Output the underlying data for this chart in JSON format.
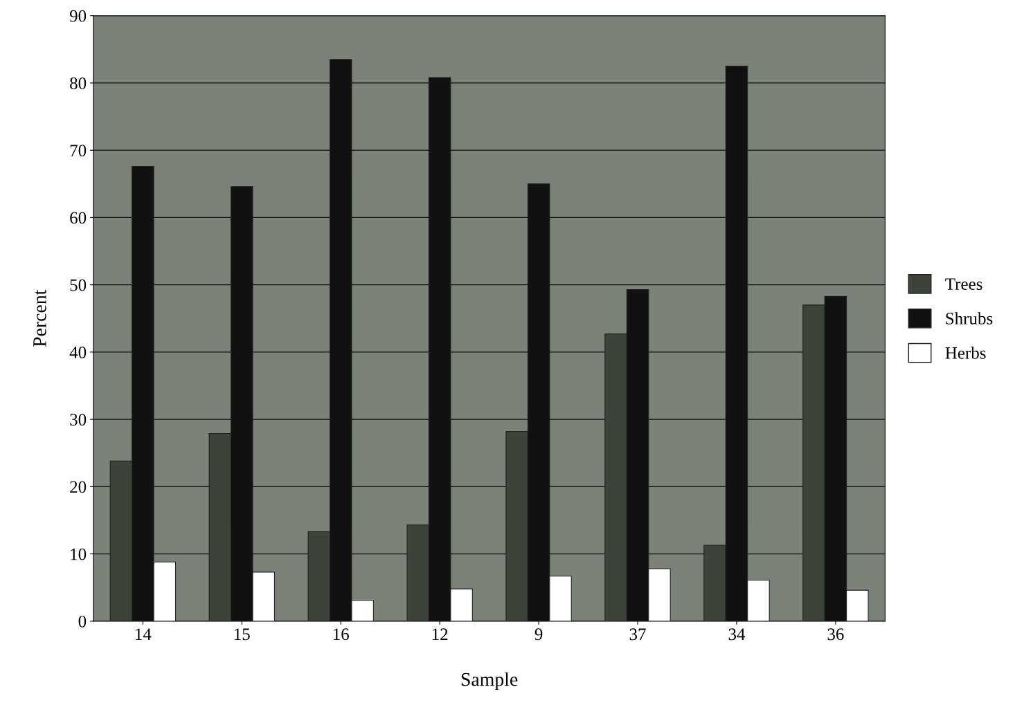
{
  "chart_data": {
    "type": "bar",
    "xlabel": "Sample",
    "ylabel": "Percent",
    "categories": [
      "14",
      "15",
      "16",
      "12",
      "9",
      "37",
      "34",
      "36"
    ],
    "series": [
      {
        "name": "Trees",
        "color": "#3d423b",
        "values": [
          23.8,
          27.9,
          13.3,
          14.3,
          28.2,
          42.7,
          11.3,
          47.0
        ]
      },
      {
        "name": "Shrubs",
        "color": "#111111",
        "values": [
          67.6,
          64.6,
          83.5,
          80.8,
          65.0,
          49.3,
          82.5,
          48.3
        ]
      },
      {
        "name": "Herbs",
        "color": "#ffffff",
        "values": [
          8.8,
          7.3,
          3.1,
          4.8,
          6.7,
          7.8,
          6.1,
          4.6
        ]
      }
    ],
    "ylim": [
      0,
      90
    ],
    "yticks": [
      0,
      10,
      20,
      30,
      40,
      50,
      60,
      70,
      80,
      90
    ],
    "grid": "y",
    "legend": "right"
  }
}
